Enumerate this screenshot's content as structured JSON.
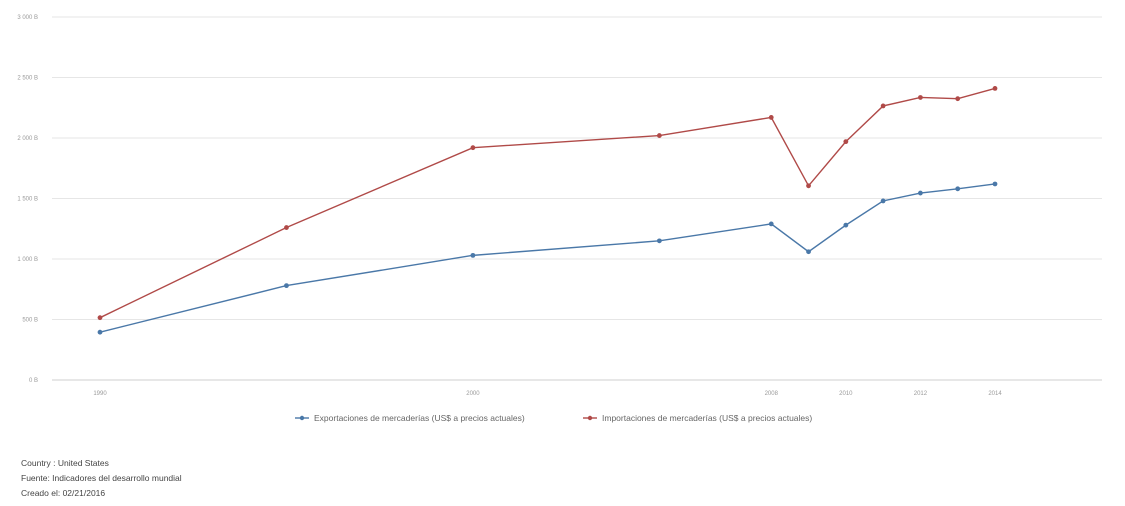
{
  "chart_data": {
    "type": "line",
    "x": [
      1990,
      1995,
      2000,
      2005,
      2008,
      2009,
      2010,
      2011,
      2012,
      2013,
      2014
    ],
    "x_tick_labels": [
      "1990",
      "2000",
      "2008",
      "2010",
      "2012",
      "2014"
    ],
    "x_tick_values": [
      1990,
      2000,
      2008,
      2010,
      2012,
      2014
    ],
    "y_tick_labels": [
      "0 B",
      "500 B",
      "1 000 B",
      "1 500 B",
      "2 000 B",
      "2 500 B",
      "3 000 B"
    ],
    "ylim": [
      0,
      3000
    ],
    "grid": true,
    "legend_position": "bottom",
    "series": [
      {
        "name": "Exportaciones de mercaderías (US$ a precios actuales)",
        "color": "#4a78a8",
        "values": [
          395,
          780,
          1030,
          1150,
          1290,
          1060,
          1280,
          1480,
          1545,
          1580,
          1620
        ]
      },
      {
        "name": "Importaciones de mercaderías (US$ a precios actuales)",
        "color": "#b04a48",
        "values": [
          515,
          1260,
          1920,
          2020,
          2170,
          1605,
          1970,
          2265,
          2335,
          2325,
          2410
        ]
      }
    ]
  },
  "notes": {
    "country": "Country : United States",
    "source": "Fuente: Indicadores del desarrollo mundial",
    "created": "Creado el: 02/21/2016"
  }
}
